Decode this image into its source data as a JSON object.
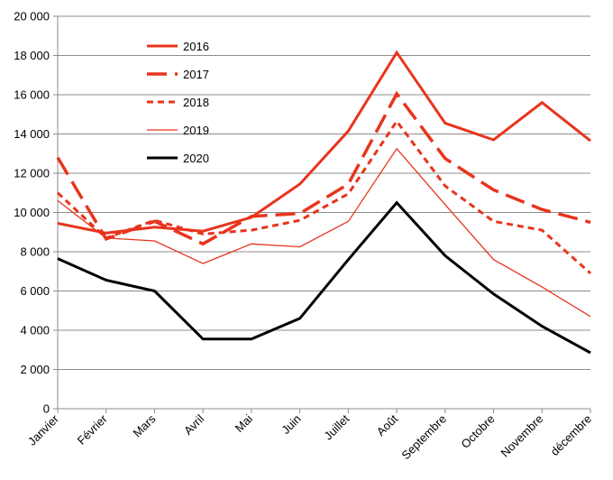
{
  "chart_data": {
    "type": "line",
    "title": "",
    "xlabel": "",
    "ylabel": "",
    "categories": [
      "Janvier",
      "Février",
      "Mars",
      "Avril",
      "Mai",
      "Juin",
      "Juillet",
      "Août",
      "Septembre",
      "Octobre",
      "Novembre",
      "décembre"
    ],
    "ylim": [
      0,
      20000
    ],
    "yticks": [
      0,
      2000,
      4000,
      6000,
      8000,
      10000,
      12000,
      14000,
      16000,
      18000,
      20000
    ],
    "ytick_labels": [
      "0",
      "2 000",
      "4 000",
      "6 000",
      "8 000",
      "10 000",
      "12 000",
      "14 000",
      "16 000",
      "18 000",
      "20 000"
    ],
    "grid": true,
    "legend_position": "top-left",
    "series": [
      {
        "name": "2016",
        "color": "#e8341c",
        "style": "solid-thick",
        "values": [
          9450,
          8950,
          9250,
          9050,
          9750,
          11450,
          14150,
          18150,
          14550,
          13700,
          15600,
          13650
        ]
      },
      {
        "name": "2017",
        "color": "#e8341c",
        "style": "long-dash",
        "values": [
          12800,
          8650,
          9550,
          8400,
          9800,
          9950,
          11450,
          16050,
          12750,
          11150,
          10150,
          9500
        ]
      },
      {
        "name": "2018",
        "color": "#e8341c",
        "style": "short-dash",
        "values": [
          11000,
          8700,
          9600,
          8900,
          9100,
          9600,
          10950,
          14650,
          11350,
          9550,
          9100,
          6900
        ]
      },
      {
        "name": "2019",
        "color": "#e8341c",
        "style": "thin",
        "values": [
          10600,
          8700,
          8550,
          7400,
          8400,
          8250,
          9550,
          13250,
          10400,
          7600,
          6200,
          4700
        ]
      },
      {
        "name": "2020",
        "color": "#000000",
        "style": "solid-thick",
        "values": [
          7650,
          6550,
          6000,
          3550,
          3550,
          4600,
          7600,
          10500,
          7800,
          5850,
          4200,
          2850
        ]
      }
    ]
  }
}
